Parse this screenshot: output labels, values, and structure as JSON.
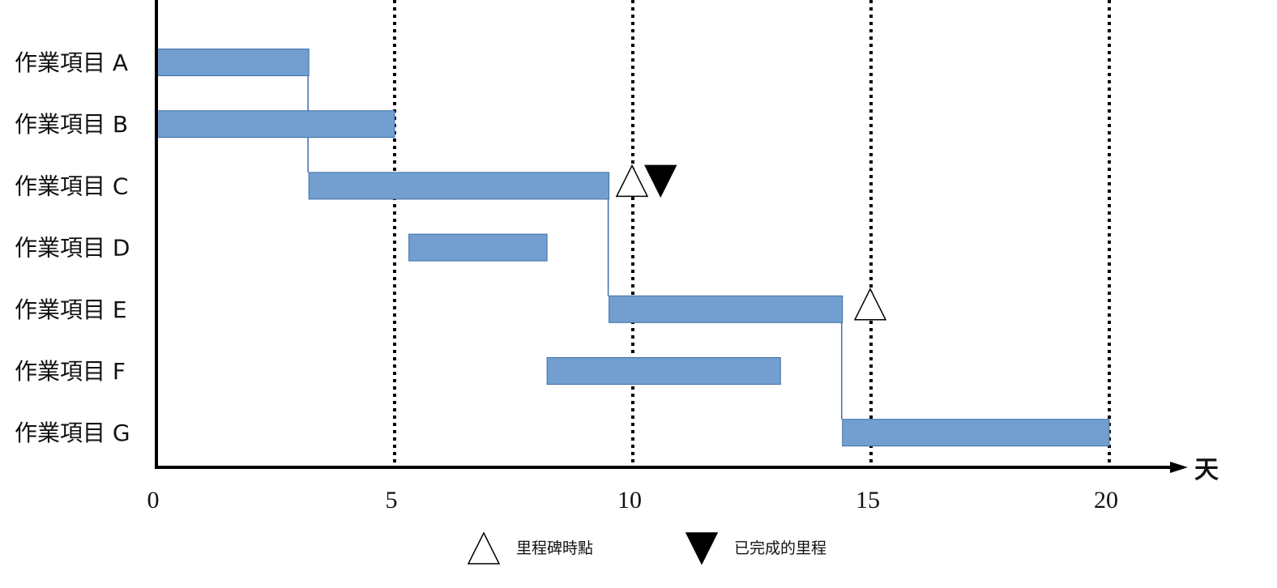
{
  "chart_data": {
    "type": "gantt",
    "title": "",
    "xlabel": "天",
    "ylabel": "",
    "xlim": [
      0,
      20
    ],
    "xticks": [
      "0",
      "5",
      "10",
      "15",
      "20"
    ],
    "grid": "dotted vertical lines at 5, 10, 15, 20",
    "tasks": [
      {
        "label": "作業項目 A",
        "start": 0,
        "end": 3.2
      },
      {
        "label": "作業項目 B",
        "start": 0,
        "end": 5
      },
      {
        "label": "作業項目 C",
        "start": 3.2,
        "end": 9.5
      },
      {
        "label": "作業項目 D",
        "start": 5.3,
        "end": 8.2
      },
      {
        "label": "作業項目 E",
        "start": 9.5,
        "end": 14.4
      },
      {
        "label": "作業項目 F",
        "start": 8.2,
        "end": 13.1
      },
      {
        "label": "作業項目 G",
        "start": 14.4,
        "end": 20
      }
    ],
    "dependencies": [
      {
        "from": 0,
        "to": 2
      },
      {
        "from": 2,
        "to": 4
      },
      {
        "from": 4,
        "to": 6
      }
    ],
    "milestones": [
      {
        "task": 2,
        "x": 10,
        "kind": "planned"
      },
      {
        "task": 2,
        "x": 10.6,
        "kind": "completed"
      },
      {
        "task": 4,
        "x": 15,
        "kind": "planned"
      }
    ],
    "legend": {
      "placement": "bottom-center",
      "items": [
        {
          "symbol": "planned",
          "label": "里程碑時點"
        },
        {
          "symbol": "completed",
          "label": "已完成的里程"
        }
      ]
    },
    "colors": {
      "bar_fill": "#729fcf",
      "bar_stroke": "#3e6fa8",
      "axis": "#000000",
      "grid": "#000000"
    }
  }
}
